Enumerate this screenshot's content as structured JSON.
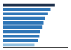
{
  "chart_data": {
    "type": "bar",
    "orientation": "horizontal",
    "categories": [
      null,
      null,
      null,
      null,
      null,
      null,
      null,
      null,
      null,
      null
    ],
    "values": [
      9500,
      8800,
      8200,
      7800,
      7500,
      7200,
      6900,
      6700,
      6400,
      5800
    ],
    "colors": [
      "#1c2f4a",
      "#2e75b6",
      "#2e75b6",
      "#2e75b6",
      "#2e75b6",
      "#2e75b6",
      "#2e75b6",
      "#2e75b6",
      "#2e75b6",
      "#92c0e0"
    ],
    "xlim": [
      0,
      12000
    ],
    "grid": false,
    "tick_labels": false
  }
}
